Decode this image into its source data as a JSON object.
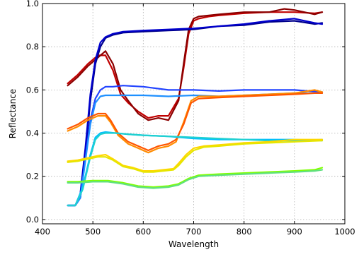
{
  "chart_data": {
    "type": "line",
    "xlabel": "Wavelength",
    "ylabel": "Reflectance",
    "xlim": [
      400,
      1000
    ],
    "ylim": [
      -0.02,
      1.0
    ],
    "xticks": [
      400,
      500,
      600,
      700,
      800,
      900,
      1000
    ],
    "yticks": [
      0.0,
      0.2,
      0.4,
      0.6,
      0.8,
      1.0
    ],
    "xtick_labels": [
      "400",
      "500",
      "600",
      "700",
      "800",
      "900",
      "1000"
    ],
    "ytick_labels": [
      "0.0",
      "0.2",
      "0.4",
      "0.6",
      "0.8",
      "1.0"
    ],
    "grid": true,
    "series": [
      {
        "color": "#c00000",
        "x": [
          450,
          470,
          490,
          510,
          525,
          540,
          555,
          570,
          590,
          610,
          630,
          650,
          670,
          680,
          690,
          700,
          710,
          730,
          750,
          800,
          850,
          900,
          940,
          955
        ],
        "y": [
          0.63,
          0.67,
          0.72,
          0.76,
          0.76,
          0.69,
          0.58,
          0.54,
          0.5,
          0.47,
          0.48,
          0.48,
          0.56,
          0.7,
          0.86,
          0.92,
          0.93,
          0.94,
          0.945,
          0.955,
          0.96,
          0.96,
          0.955,
          0.96
        ]
      },
      {
        "color": "#8b0000",
        "x": [
          450,
          470,
          490,
          510,
          525,
          540,
          555,
          570,
          590,
          610,
          630,
          650,
          670,
          680,
          690,
          700,
          710,
          730,
          750,
          800,
          850,
          880,
          900,
          940,
          955
        ],
        "y": [
          0.62,
          0.66,
          0.71,
          0.75,
          0.78,
          0.72,
          0.6,
          0.55,
          0.49,
          0.46,
          0.47,
          0.46,
          0.55,
          0.72,
          0.88,
          0.93,
          0.94,
          0.945,
          0.95,
          0.96,
          0.96,
          0.975,
          0.97,
          0.95,
          0.96
        ]
      },
      {
        "color": "#00008b",
        "x": [
          450,
          465,
          475,
          485,
          495,
          505,
          515,
          525,
          540,
          560,
          600,
          650,
          700,
          750,
          800,
          850,
          900,
          940,
          955
        ],
        "y": [
          0.065,
          0.065,
          0.1,
          0.3,
          0.55,
          0.72,
          0.8,
          0.84,
          0.855,
          0.865,
          0.87,
          0.875,
          0.88,
          0.895,
          0.9,
          0.915,
          0.92,
          0.905,
          0.91
        ]
      },
      {
        "color": "#0000cd",
        "x": [
          450,
          465,
          475,
          485,
          495,
          505,
          515,
          525,
          540,
          560,
          600,
          650,
          700,
          750,
          800,
          850,
          900,
          940,
          955
        ],
        "y": [
          0.065,
          0.065,
          0.12,
          0.33,
          0.58,
          0.74,
          0.82,
          0.845,
          0.86,
          0.87,
          0.875,
          0.88,
          0.885,
          0.895,
          0.905,
          0.92,
          0.93,
          0.91,
          0.905
        ]
      },
      {
        "color": "#2244ff",
        "x": [
          450,
          465,
          475,
          485,
          495,
          505,
          515,
          525,
          540,
          560,
          600,
          650,
          700,
          750,
          800,
          850,
          900,
          955
        ],
        "y": [
          0.065,
          0.065,
          0.1,
          0.28,
          0.46,
          0.56,
          0.6,
          0.615,
          0.615,
          0.62,
          0.615,
          0.6,
          0.6,
          0.595,
          0.6,
          0.6,
          0.6,
          0.59
        ]
      },
      {
        "color": "#1e90ff",
        "x": [
          450,
          465,
          475,
          485,
          495,
          505,
          515,
          525,
          540,
          560,
          600,
          650,
          700,
          750,
          800,
          850,
          900,
          955
        ],
        "y": [
          0.065,
          0.065,
          0.1,
          0.27,
          0.44,
          0.54,
          0.57,
          0.575,
          0.575,
          0.575,
          0.575,
          0.57,
          0.575,
          0.57,
          0.575,
          0.58,
          0.585,
          0.585
        ]
      },
      {
        "color": "#ff8c00",
        "x": [
          450,
          470,
          490,
          510,
          525,
          535,
          550,
          570,
          590,
          610,
          630,
          650,
          665,
          680,
          695,
          710,
          750,
          800,
          850,
          900,
          940,
          955
        ],
        "y": [
          0.41,
          0.43,
          0.46,
          0.48,
          0.48,
          0.45,
          0.39,
          0.35,
          0.33,
          0.31,
          0.33,
          0.34,
          0.36,
          0.45,
          0.55,
          0.57,
          0.57,
          0.575,
          0.58,
          0.585,
          0.6,
          0.59
        ]
      },
      {
        "color": "#ff5500",
        "x": [
          450,
          470,
          490,
          510,
          525,
          535,
          550,
          570,
          590,
          610,
          630,
          650,
          665,
          680,
          695,
          710,
          750,
          800,
          850,
          900,
          940,
          955
        ],
        "y": [
          0.42,
          0.44,
          0.47,
          0.49,
          0.49,
          0.46,
          0.4,
          0.36,
          0.34,
          0.32,
          0.34,
          0.35,
          0.37,
          0.44,
          0.54,
          0.56,
          0.565,
          0.57,
          0.575,
          0.58,
          0.585,
          0.585
        ]
      },
      {
        "color": "#00bfff",
        "x": [
          450,
          465,
          480,
          495,
          505,
          515,
          525,
          545,
          570,
          600,
          650,
          700,
          750,
          800,
          850,
          900,
          955
        ],
        "y": [
          0.065,
          0.065,
          0.15,
          0.3,
          0.38,
          0.4,
          0.405,
          0.4,
          0.395,
          0.39,
          0.385,
          0.375,
          0.37,
          0.37,
          0.37,
          0.37,
          0.365
        ]
      },
      {
        "color": "#20d0d0",
        "x": [
          450,
          465,
          480,
          495,
          505,
          515,
          525,
          545,
          570,
          600,
          650,
          700,
          750,
          800,
          850,
          900,
          955
        ],
        "y": [
          0.065,
          0.065,
          0.14,
          0.29,
          0.37,
          0.395,
          0.4,
          0.4,
          0.395,
          0.39,
          0.385,
          0.38,
          0.375,
          0.37,
          0.365,
          0.365,
          0.37
        ]
      },
      {
        "color": "#ffd700",
        "x": [
          450,
          470,
          490,
          510,
          525,
          540,
          560,
          580,
          600,
          620,
          640,
          660,
          670,
          685,
          700,
          720,
          750,
          800,
          850,
          900,
          955
        ],
        "y": [
          0.27,
          0.275,
          0.285,
          0.295,
          0.3,
          0.28,
          0.25,
          0.24,
          0.225,
          0.225,
          0.23,
          0.235,
          0.26,
          0.3,
          0.33,
          0.34,
          0.345,
          0.355,
          0.36,
          0.37,
          0.37
        ]
      },
      {
        "color": "#e6e600",
        "x": [
          450,
          470,
          490,
          510,
          525,
          540,
          560,
          580,
          600,
          620,
          640,
          660,
          670,
          685,
          700,
          720,
          750,
          800,
          850,
          900,
          955
        ],
        "y": [
          0.265,
          0.27,
          0.28,
          0.29,
          0.29,
          0.275,
          0.245,
          0.235,
          0.22,
          0.22,
          0.225,
          0.23,
          0.25,
          0.29,
          0.32,
          0.335,
          0.34,
          0.35,
          0.355,
          0.36,
          0.365
        ]
      },
      {
        "color": "#7fff00",
        "x": [
          450,
          470,
          500,
          530,
          560,
          590,
          620,
          650,
          670,
          690,
          710,
          750,
          800,
          850,
          900,
          940,
          955
        ],
        "y": [
          0.175,
          0.175,
          0.18,
          0.18,
          0.17,
          0.155,
          0.15,
          0.155,
          0.165,
          0.19,
          0.205,
          0.21,
          0.215,
          0.22,
          0.225,
          0.23,
          0.24
        ]
      },
      {
        "color": "#60e080",
        "x": [
          450,
          470,
          500,
          530,
          560,
          590,
          620,
          650,
          670,
          690,
          710,
          750,
          800,
          850,
          900,
          940,
          955
        ],
        "y": [
          0.17,
          0.17,
          0.175,
          0.175,
          0.165,
          0.15,
          0.145,
          0.15,
          0.16,
          0.185,
          0.2,
          0.205,
          0.21,
          0.215,
          0.22,
          0.225,
          0.23
        ]
      }
    ]
  }
}
